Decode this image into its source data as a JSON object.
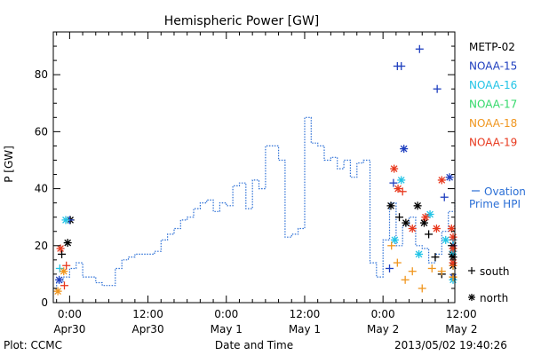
{
  "chart_data": {
    "type": "scatter",
    "title": "Hemispheric Power [GW]",
    "ylabel": "P [GW]",
    "xlabel": "Date and Time",
    "x_unit": "hours from 2013-04-30 00:00 UT",
    "xlim": [
      -2.5,
      59
    ],
    "ylim": [
      0,
      95
    ],
    "y_ticks": [
      0,
      20,
      40,
      60,
      80
    ],
    "x_ticks": [
      {
        "x": 0,
        "time": "0:00",
        "date": "Apr30"
      },
      {
        "x": 12,
        "time": "12:00",
        "date": "Apr30"
      },
      {
        "x": 24,
        "time": "0:00",
        "date": "May 1"
      },
      {
        "x": 36,
        "time": "12:00",
        "date": "May 1"
      },
      {
        "x": 48,
        "time": "0:00",
        "date": "May 2"
      },
      {
        "x": 60,
        "time": "12:00",
        "date": "May 2"
      }
    ],
    "legend": [
      {
        "name": "METP-02",
        "color": "#000000"
      },
      {
        "name": "NOAA-15",
        "color": "#1f3fbf"
      },
      {
        "name": "NOAA-16",
        "color": "#22c4e6"
      },
      {
        "name": "NOAA-17",
        "color": "#33d96a"
      },
      {
        "name": "NOAA-18",
        "color": "#f0961e"
      },
      {
        "name": "NOAA-19",
        "color": "#e8391e"
      }
    ],
    "ovation_label": [
      "Ovation",
      "Prime HPI"
    ],
    "marker_legend": [
      {
        "symbol": "+",
        "label": "south"
      },
      {
        "symbol": "*",
        "label": "north"
      }
    ],
    "ovation_series": {
      "name": "Ovation Prime HPI",
      "color": "#2b6fd6",
      "x": [
        -2.5,
        -2,
        -1,
        0,
        1,
        2,
        3,
        4,
        5,
        6,
        7,
        8,
        9,
        10,
        11,
        12,
        13,
        14,
        15,
        16,
        17,
        18,
        19,
        20,
        21,
        22,
        23,
        24,
        25,
        26,
        27,
        28,
        29,
        30,
        31,
        32,
        33,
        34,
        35,
        36,
        37,
        38,
        39,
        40,
        41,
        42,
        43,
        44,
        45,
        46,
        47,
        48,
        49,
        50,
        51,
        52,
        53,
        54,
        55,
        56,
        57,
        58,
        59
      ],
      "y": [
        5,
        7,
        9,
        12,
        14,
        9,
        9,
        7,
        6,
        6,
        12,
        15,
        16,
        17,
        17,
        17,
        18,
        22,
        24,
        26,
        29,
        30,
        33,
        35,
        36,
        32,
        35,
        34,
        41,
        42,
        33,
        43,
        40,
        55,
        55,
        50,
        23,
        24,
        26,
        65,
        56,
        55,
        50,
        51,
        47,
        50,
        44,
        49,
        50,
        14,
        9,
        22,
        35,
        20,
        27,
        30,
        20,
        19,
        14,
        17,
        25,
        32,
        36
      ]
    },
    "series": [
      {
        "name": "METP-02",
        "color": "#000000",
        "points": [
          {
            "x": -1.2,
            "y": 17,
            "m": "+"
          },
          {
            "x": -0.3,
            "y": 21,
            "m": "*"
          },
          {
            "x": 0.1,
            "y": 29,
            "m": "*"
          },
          {
            "x": 49.2,
            "y": 34,
            "m": "*"
          },
          {
            "x": 50.5,
            "y": 30,
            "m": "+"
          },
          {
            "x": 51.5,
            "y": 28,
            "m": "*"
          },
          {
            "x": 53.3,
            "y": 34,
            "m": "*"
          },
          {
            "x": 54.3,
            "y": 28,
            "m": "*"
          },
          {
            "x": 55.0,
            "y": 24,
            "m": "+"
          },
          {
            "x": 56.0,
            "y": 16,
            "m": "+"
          },
          {
            "x": 57.0,
            "y": 10,
            "m": "+"
          },
          {
            "x": 58.6,
            "y": 17,
            "m": "*"
          },
          {
            "x": 60.0,
            "y": 13,
            "m": "*"
          },
          {
            "x": 61.5,
            "y": 16,
            "m": "*"
          },
          {
            "x": 62.5,
            "y": 20,
            "m": "*"
          }
        ]
      },
      {
        "name": "NOAA-15",
        "color": "#1f3fbf",
        "points": [
          {
            "x": -1.6,
            "y": 8,
            "m": "*"
          },
          {
            "x": 0.0,
            "y": 29,
            "m": "+"
          },
          {
            "x": 49.0,
            "y": 12,
            "m": "+"
          },
          {
            "x": 49.6,
            "y": 42,
            "m": "+"
          },
          {
            "x": 50.2,
            "y": 83,
            "m": "+"
          },
          {
            "x": 50.8,
            "y": 83,
            "m": "+"
          },
          {
            "x": 51.2,
            "y": 54,
            "m": "*"
          },
          {
            "x": 53.6,
            "y": 89,
            "m": "+"
          },
          {
            "x": 56.3,
            "y": 75,
            "m": "+"
          },
          {
            "x": 57.4,
            "y": 37,
            "m": "+"
          },
          {
            "x": 58.2,
            "y": 44,
            "m": "*"
          },
          {
            "x": 60.0,
            "y": 22,
            "m": "+"
          },
          {
            "x": 61.2,
            "y": 9,
            "m": "*"
          },
          {
            "x": 62.5,
            "y": 20,
            "m": "+"
          }
        ]
      },
      {
        "name": "NOAA-16",
        "color": "#22c4e6",
        "points": [
          {
            "x": -0.6,
            "y": 29,
            "m": "*"
          },
          {
            "x": -1.5,
            "y": 12,
            "m": "+"
          },
          {
            "x": 49.8,
            "y": 22,
            "m": "*"
          },
          {
            "x": 50.8,
            "y": 43,
            "m": "*"
          },
          {
            "x": 53.5,
            "y": 17,
            "m": "*"
          },
          {
            "x": 55.2,
            "y": 31,
            "m": "*"
          },
          {
            "x": 57.6,
            "y": 22,
            "m": "*"
          },
          {
            "x": 59.0,
            "y": 18,
            "m": "*"
          },
          {
            "x": 60.5,
            "y": 8,
            "m": "*"
          },
          {
            "x": 62.0,
            "y": 22,
            "m": "+"
          }
        ]
      },
      {
        "name": "NOAA-18",
        "color": "#f0961e",
        "points": [
          {
            "x": -1.8,
            "y": 4,
            "m": "*"
          },
          {
            "x": -0.9,
            "y": 11,
            "m": "*"
          },
          {
            "x": 49.3,
            "y": 20,
            "m": "+"
          },
          {
            "x": 50.2,
            "y": 14,
            "m": "+"
          },
          {
            "x": 51.4,
            "y": 8,
            "m": "+"
          },
          {
            "x": 52.5,
            "y": 11,
            "m": "+"
          },
          {
            "x": 54.0,
            "y": 5,
            "m": "+"
          },
          {
            "x": 55.5,
            "y": 12,
            "m": "+"
          },
          {
            "x": 57.0,
            "y": 11,
            "m": "+"
          },
          {
            "x": 59.5,
            "y": 9,
            "m": "+"
          },
          {
            "x": 61.5,
            "y": 13,
            "m": "+"
          },
          {
            "x": 63.0,
            "y": 9,
            "m": "+"
          }
        ]
      },
      {
        "name": "NOAA-19",
        "color": "#e8391e",
        "points": [
          {
            "x": -1.4,
            "y": 19,
            "m": "*"
          },
          {
            "x": -0.5,
            "y": 13,
            "m": "+"
          },
          {
            "x": -0.8,
            "y": 6,
            "m": "+"
          },
          {
            "x": 49.7,
            "y": 47,
            "m": "*"
          },
          {
            "x": 50.3,
            "y": 40,
            "m": "*"
          },
          {
            "x": 51.0,
            "y": 39,
            "m": "+"
          },
          {
            "x": 52.5,
            "y": 26,
            "m": "*"
          },
          {
            "x": 54.5,
            "y": 30,
            "m": "*"
          },
          {
            "x": 56.2,
            "y": 26,
            "m": "*"
          },
          {
            "x": 57.0,
            "y": 43,
            "m": "*"
          },
          {
            "x": 58.5,
            "y": 26,
            "m": "*"
          },
          {
            "x": 60.3,
            "y": 19,
            "m": "*"
          },
          {
            "x": 62.0,
            "y": 14,
            "m": "*"
          },
          {
            "x": 63.5,
            "y": 23,
            "m": "*"
          }
        ]
      }
    ]
  },
  "footer": {
    "plot_credit": "Plot: CCMC",
    "timestamp": "2013/05/02 19:40:26"
  }
}
